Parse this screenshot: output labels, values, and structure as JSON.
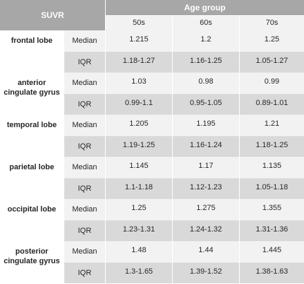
{
  "table": {
    "corner_label": "SUVR",
    "group_header": "Age group",
    "columns": [
      "50s",
      "60s",
      "70s"
    ],
    "regions": [
      {
        "name_lines": [
          "frontal lobe"
        ],
        "rows": [
          {
            "stat": "Median",
            "values": [
              "1.215",
              "1.2",
              "1.25"
            ]
          },
          {
            "stat": "IQR",
            "values": [
              "1.18-1.27",
              "1.16-1.25",
              "1.05-1.27"
            ]
          }
        ]
      },
      {
        "name_lines": [
          "anterior",
          "cingulate gyrus"
        ],
        "rows": [
          {
            "stat": "Median",
            "values": [
              "1.03",
              "0.98",
              "0.99"
            ]
          },
          {
            "stat": "IQR",
            "values": [
              "0.99-1.1",
              "0.95-1.05",
              "0.89-1.01"
            ]
          }
        ]
      },
      {
        "name_lines": [
          "temporal lobe"
        ],
        "rows": [
          {
            "stat": "Median",
            "values": [
              "1.205",
              "1.195",
              "1.21"
            ]
          },
          {
            "stat": "IQR",
            "values": [
              "1.19-1.25",
              "1.16-1.24",
              "1.18-1.25"
            ]
          }
        ]
      },
      {
        "name_lines": [
          "parietal lobe"
        ],
        "rows": [
          {
            "stat": "Median",
            "values": [
              "1.145",
              "1.17",
              "1.135"
            ]
          },
          {
            "stat": "IQR",
            "values": [
              "1.1-1.18",
              "1.12-1.23",
              "1.05-1.18"
            ]
          }
        ]
      },
      {
        "name_lines": [
          "occipital lobe"
        ],
        "rows": [
          {
            "stat": "Median",
            "values": [
              "1.25",
              "1.275",
              "1.355"
            ]
          },
          {
            "stat": "IQR",
            "values": [
              "1.23-1.31",
              "1.24-1.32",
              "1.31-1.36"
            ]
          }
        ]
      },
      {
        "name_lines": [
          "posterior",
          "cingulate gyrus"
        ],
        "rows": [
          {
            "stat": "Median",
            "values": [
              "1.48",
              "1.44",
              "1.445"
            ]
          },
          {
            "stat": "IQR",
            "values": [
              "1.3-1.65",
              "1.39-1.52",
              "1.38-1.63"
            ]
          }
        ]
      }
    ]
  }
}
